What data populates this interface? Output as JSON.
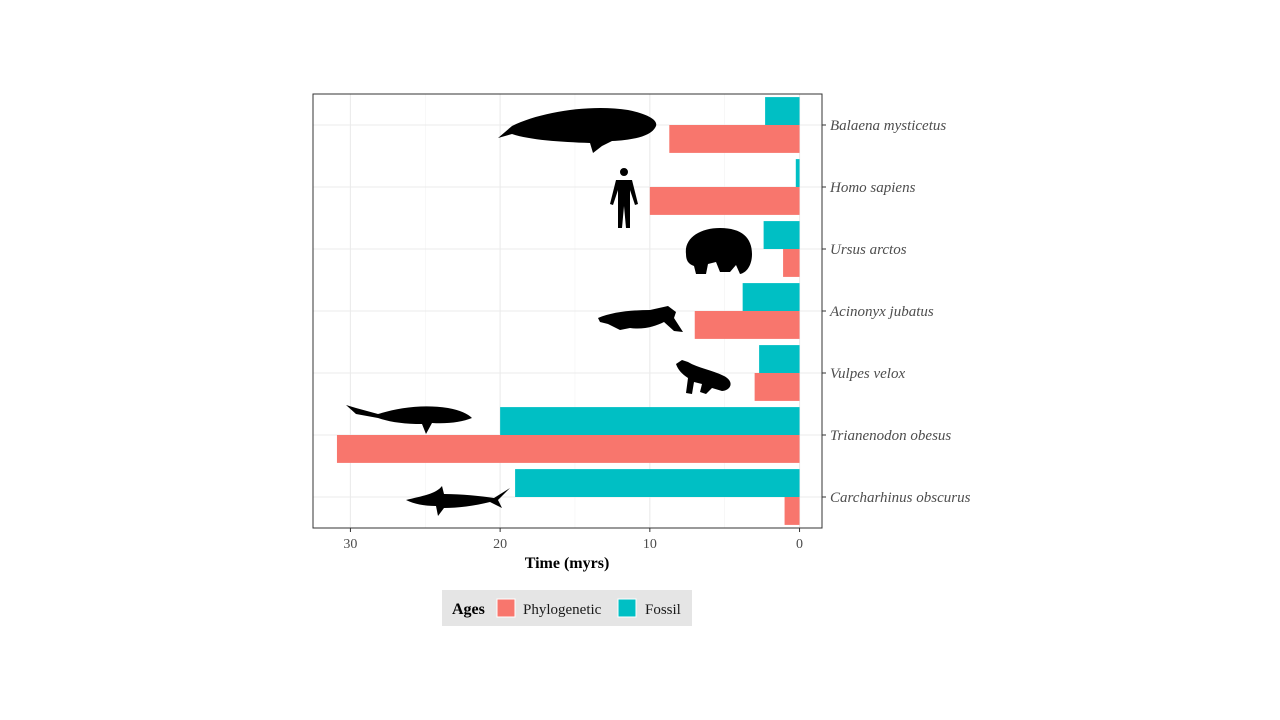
{
  "chart_data": {
    "type": "bar",
    "orientation": "horizontal",
    "xlabel": "Time (myrs)",
    "ylabel": "",
    "xlim": [
      32.5,
      -1.5
    ],
    "x_reversed": true,
    "xticks": [
      30,
      20,
      10,
      0
    ],
    "grid": true,
    "categories": [
      "Balaena mysticetus",
      "Homo sapiens",
      "Ursus arctos",
      "Acinonyx jubatus",
      "Vulpes velox",
      "Trianenodon obesus",
      "Carcharhinus obscurus"
    ],
    "series": [
      {
        "name": "Phylogenetic",
        "color": "#F8766D",
        "values": [
          8.7,
          10.0,
          1.1,
          7.0,
          3.0,
          30.9,
          1.0
        ]
      },
      {
        "name": "Fossil",
        "color": "#00BFC4",
        "values": [
          2.3,
          0.25,
          2.4,
          3.8,
          2.7,
          20.0,
          19.0
        ]
      }
    ],
    "legend": {
      "title": "Ages",
      "placement": "bottom"
    },
    "silhouettes": [
      "whale-icon",
      "human-icon",
      "bear-icon",
      "cheetah-icon",
      "fox-icon",
      "shark-icon",
      "shark-icon"
    ]
  }
}
